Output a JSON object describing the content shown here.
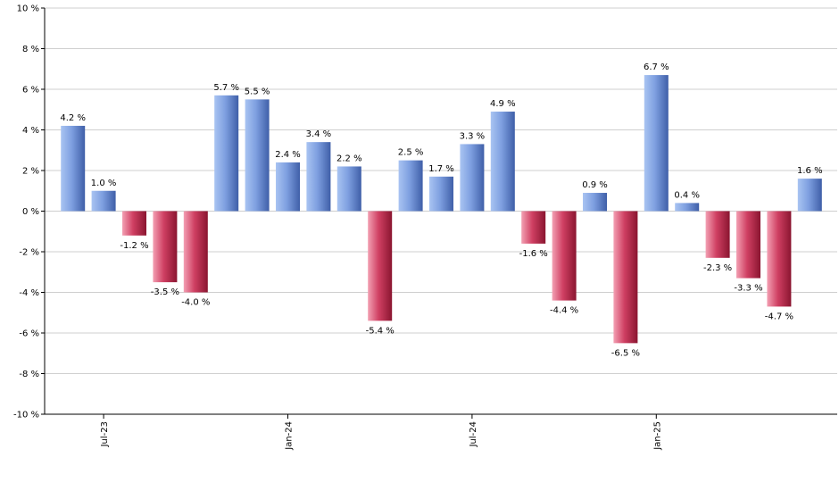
{
  "chart_data": {
    "type": "bar",
    "ylim": [
      -10,
      10
    ],
    "y_ticks": [
      10,
      8,
      6,
      4,
      2,
      0,
      -2,
      -4,
      -6,
      -8,
      -10
    ],
    "y_tick_labels": [
      "10 %",
      "8 %",
      "6 %",
      "4 %",
      "2 %",
      "0 %",
      "-2 %",
      "-4 %",
      "-6 %",
      "-8 %",
      "-10 %"
    ],
    "x_ticks": [
      {
        "label": "Jul-23",
        "index": 1
      },
      {
        "label": "Jan-24",
        "index": 7
      },
      {
        "label": "Jul-24",
        "index": 13
      },
      {
        "label": "Jan-25",
        "index": 19
      }
    ],
    "grid": true,
    "values": [
      4.2,
      1.0,
      -1.2,
      -3.5,
      -4.0,
      5.7,
      5.5,
      2.4,
      3.4,
      2.2,
      -5.4,
      2.5,
      1.7,
      3.3,
      4.9,
      -1.6,
      -4.4,
      0.9,
      -6.5,
      6.7,
      0.4,
      -2.3,
      -3.3,
      -4.7,
      1.6
    ],
    "labels": [
      "4.2 %",
      "1.0 %",
      "-1.2 %",
      "-3.5 %",
      "-4.0 %",
      "5.7 %",
      "5.5 %",
      "2.4 %",
      "3.4 %",
      "2.2 %",
      "-5.4 %",
      "2.5 %",
      "1.7 %",
      "3.3 %",
      "4.9 %",
      "-1.6 %",
      "-4.4 %",
      "0.9 %",
      "-6.5 %",
      "6.7 %",
      "0.4 %",
      "-2.3 %",
      "-3.3 %",
      "-4.7 %",
      "1.6 %"
    ],
    "colors": {
      "positive": "#5b7fd0",
      "negative": "#b8203f",
      "grid": "#cfcfcf",
      "axis": "#000000"
    }
  }
}
